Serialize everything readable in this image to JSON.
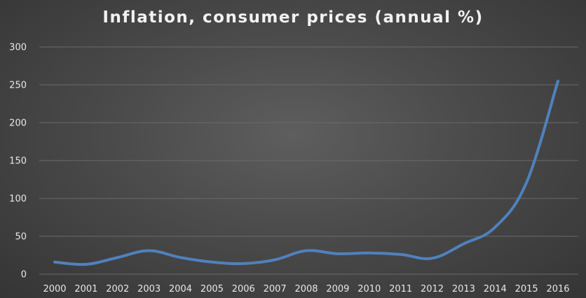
{
  "chart_data": {
    "type": "line",
    "title": "Inflation, consumer prices (annual %)",
    "xlabel": "",
    "ylabel": "",
    "categories": [
      "2000",
      "2001",
      "2002",
      "2003",
      "2004",
      "2005",
      "2006",
      "2007",
      "2008",
      "2009",
      "2010",
      "2011",
      "2012",
      "2013",
      "2014",
      "2015",
      "2016"
    ],
    "series": [
      {
        "values": [
          16,
          13,
          22,
          31,
          22,
          16,
          14,
          19,
          31,
          27,
          28,
          26,
          21,
          40,
          62,
          121,
          255
        ],
        "color": "#4f81bd"
      }
    ],
    "ylim": [
      0,
      300
    ],
    "yticks": [
      0,
      50,
      100,
      150,
      200,
      250,
      300
    ],
    "grid": true,
    "legend": "none"
  },
  "colors": {
    "background": "#4a4a4a",
    "text": "#e8e8e8",
    "gridline": "#6a6a6a",
    "line": "#4f81bd"
  }
}
